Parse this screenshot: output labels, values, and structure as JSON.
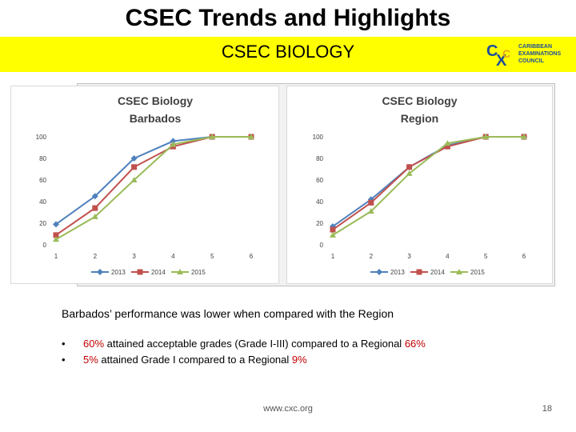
{
  "slide": {
    "title": "CSEC Trends and Highlights",
    "subtitle": "CSEC BIOLOGY",
    "logo": {
      "mark": "CXC",
      "line1": "CARIBBEAN",
      "line2": "EXAMINATIONS",
      "line3": "COUNCIL"
    },
    "summary": "Barbados’ performance was lower when compared with the Region",
    "bullets": [
      {
        "pre": "",
        "v1": "60%",
        "mid": " attained acceptable grades (Grade I-III) compared to a Regional ",
        "v2": "66%"
      },
      {
        "pre": "",
        "v1": "5%",
        "mid": " attained Grade I compared to a Regional ",
        "v2": "9%"
      }
    ],
    "footer_url": "www.cxc.org",
    "page_number": "18"
  },
  "colors": {
    "series_2013": "#4f81bd",
    "series_2014": "#c0504d",
    "series_2015": "#9bbb59",
    "highlight": "#c00000",
    "band": "#ffff00"
  },
  "chart_data": [
    {
      "type": "line",
      "title_line1": "CSEC Biology",
      "title_line2": "Barbados",
      "x": [
        1,
        2,
        3,
        4,
        5,
        6
      ],
      "ylim": [
        0,
        100
      ],
      "yticks": [
        0,
        20,
        40,
        60,
        80,
        100
      ],
      "legend_position": "bottom",
      "series": [
        {
          "name": "2013",
          "marker": "diamond",
          "values": [
            19,
            45,
            80,
            96,
            100,
            100
          ]
        },
        {
          "name": "2014",
          "marker": "square",
          "values": [
            9,
            34,
            72,
            91,
            100,
            100
          ]
        },
        {
          "name": "2015",
          "marker": "triangle",
          "values": [
            5,
            26,
            60,
            93,
            100,
            100
          ]
        }
      ]
    },
    {
      "type": "line",
      "title_line1": "CSEC Biology",
      "title_line2": "Region",
      "x": [
        1,
        2,
        3,
        4,
        5,
        6
      ],
      "ylim": [
        0,
        100
      ],
      "yticks": [
        0,
        20,
        40,
        60,
        80,
        100
      ],
      "legend_position": "bottom",
      "series": [
        {
          "name": "2013",
          "marker": "diamond",
          "values": [
            17,
            42,
            72,
            92,
            100,
            100
          ]
        },
        {
          "name": "2014",
          "marker": "square",
          "values": [
            14,
            39,
            72,
            91,
            100,
            100
          ]
        },
        {
          "name": "2015",
          "marker": "triangle",
          "values": [
            9,
            31,
            66,
            94,
            100,
            100
          ]
        }
      ]
    }
  ]
}
